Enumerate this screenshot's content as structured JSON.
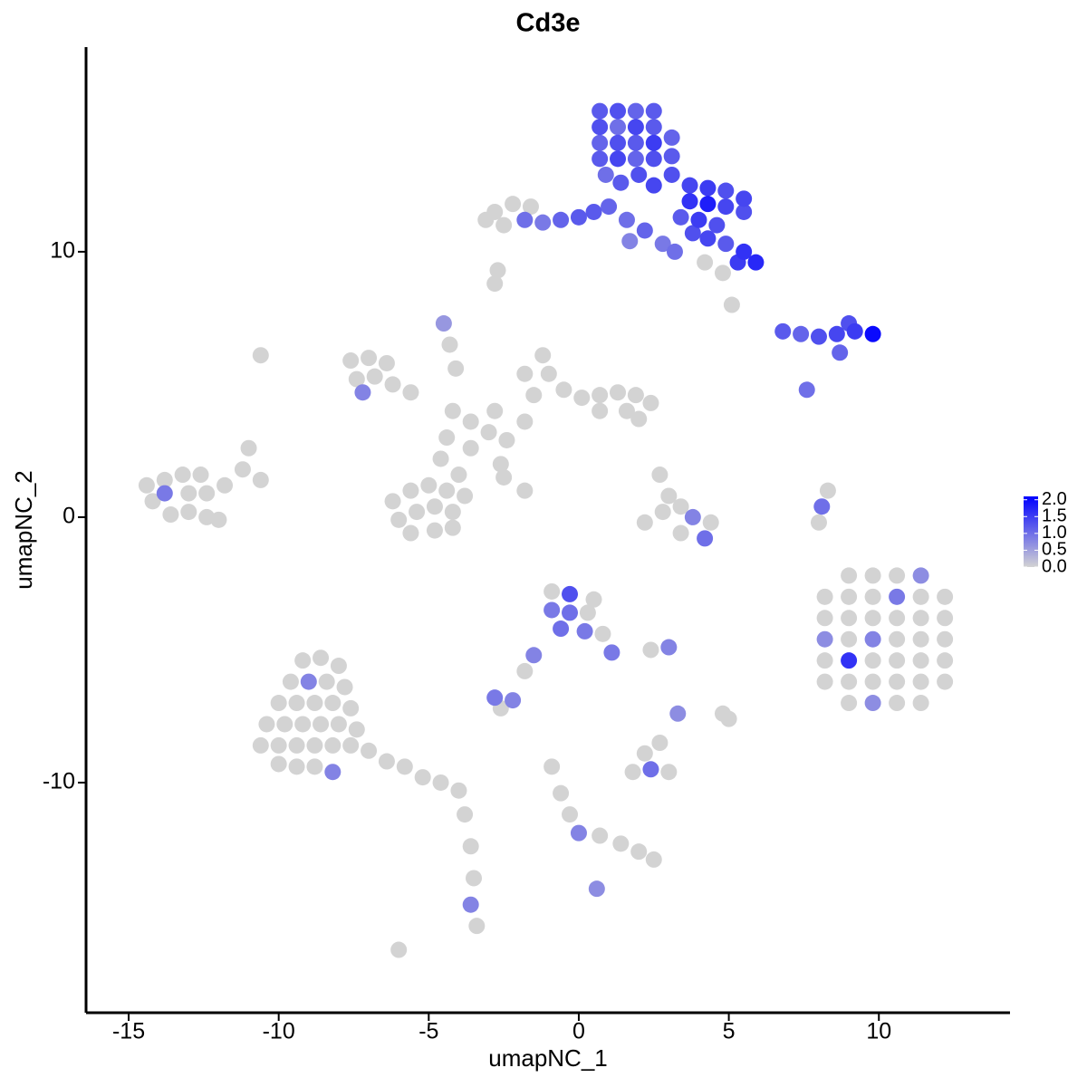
{
  "chart_data": {
    "type": "scatter",
    "title": "Cd3e",
    "x_label": "umapNC_1",
    "y_label": "umapNC_2",
    "xlim": [
      -16.42,
      14.37
    ],
    "ylim": [
      -18.67,
      17.71
    ],
    "xticks": [
      -15,
      -10,
      -5,
      0,
      5,
      10
    ],
    "yticks": [
      -10,
      0,
      10
    ],
    "color_low": "#d3d3d3",
    "color_high": "#0000ff",
    "clim": [
      0,
      2.1
    ],
    "cticks": [
      {
        "value": 0,
        "label": "0.0"
      },
      {
        "value": 0.5,
        "label": "0.5"
      },
      {
        "value": 1,
        "label": "1.0"
      },
      {
        "value": 1.5,
        "label": "1.5"
      },
      {
        "value": 2,
        "label": "2.0"
      }
    ],
    "x": [
      0.7,
      1.3,
      1.9,
      2.5,
      0.7,
      1.3,
      1.9,
      2.5,
      0.7,
      1.3,
      1.9,
      2.5,
      0.7,
      1.3,
      1.9,
      2.5,
      0.9,
      1.4,
      2.0,
      2.5,
      3.1,
      3.1,
      3.1,
      3.7,
      4.3,
      4.9,
      5.5,
      3.7,
      4.3,
      4.9,
      5.5,
      3.4,
      4.0,
      4.6,
      4.3,
      4.9,
      5.5,
      5.9,
      5.3,
      3.8,
      -1.8,
      -1.2,
      -0.6,
      0.0,
      0.5,
      1.0,
      1.6,
      2.2,
      2.8,
      3.2,
      1.7,
      -2.8,
      -2.2,
      -1.6,
      -2.5,
      -3.1,
      4.2,
      4.8,
      5.1,
      6.8,
      7.4,
      8.0,
      8.6,
      9.2,
      9.8,
      9.0,
      8.7,
      7.6,
      -7.6,
      -7.0,
      -6.4,
      -7.4,
      -6.8,
      -6.2,
      -5.6,
      -7.2,
      -4.2,
      -3.6,
      -3.0,
      -2.4,
      -3.6,
      -4.4,
      -2.8,
      -1.8,
      -4.6,
      -4.0,
      -2.6,
      -1.2,
      -1.8,
      -1.0,
      -0.5,
      -1.5,
      0.1,
      0.7,
      1.3,
      1.9,
      2.4,
      1.6,
      0.7,
      2.0,
      -6.2,
      -5.6,
      -5.0,
      -4.4,
      -3.8,
      -6.0,
      -5.4,
      -4.8,
      -4.2,
      -5.6,
      -4.8,
      -4.2,
      -4.5,
      -4.3,
      -4.1,
      -2.5,
      -1.8,
      -10.6,
      -14.4,
      -13.8,
      -13.2,
      -12.6,
      -14.2,
      -13.8,
      -13.0,
      -12.4,
      -13.6,
      -13.0,
      -12.4,
      -11.8,
      -11.2,
      -11.0,
      -10.6,
      -12.0,
      2.7,
      3.0,
      3.4,
      2.8,
      3.8,
      4.4,
      3.4,
      4.2,
      2.2,
      8.3,
      8.1,
      8.0,
      8.2,
      8.2,
      8.2,
      8.2,
      8.2,
      9.0,
      9.0,
      9.0,
      9.0,
      9.0,
      9.0,
      9.0,
      9.8,
      9.8,
      9.8,
      9.8,
      9.8,
      9.8,
      9.8,
      10.6,
      10.6,
      10.6,
      10.6,
      10.6,
      10.6,
      10.6,
      11.4,
      11.4,
      11.4,
      11.4,
      11.4,
      11.4,
      11.4,
      12.2,
      12.2,
      12.2,
      12.2,
      12.2,
      -0.9,
      -0.3,
      -0.9,
      -0.3,
      0.3,
      -0.6,
      0.2,
      0.8,
      1.1,
      -1.5,
      -1.8,
      0.5,
      -2.8,
      -2.2,
      -2.6,
      2.4,
      3.0,
      -9.2,
      -8.6,
      -8.0,
      -9.6,
      -9.0,
      -8.4,
      -7.8,
      -10.0,
      -9.4,
      -8.8,
      -8.2,
      -7.6,
      -10.4,
      -9.8,
      -9.2,
      -8.6,
      -8.0,
      -7.4,
      -10.6,
      -10.0,
      -9.4,
      -8.8,
      -8.2,
      -7.6,
      -7.0,
      -10.0,
      -9.4,
      -8.8,
      -8.2,
      -6.4,
      -5.8,
      -5.2,
      -4.6,
      -4.0,
      -3.8,
      -3.6,
      -3.5,
      -3.6,
      -3.4,
      -6.0,
      1.8,
      2.4,
      3.0,
      2.2,
      2.7,
      3.3,
      5.0,
      4.8,
      -0.9,
      -0.6,
      -0.3,
      0.0,
      0.7,
      1.4,
      2.0,
      2.5,
      0.6,
      -2.8,
      -2.7
    ],
    "values": [
      15.3,
      15.3,
      15.3,
      15.3,
      14.7,
      14.7,
      14.7,
      14.7,
      14.1,
      14.1,
      14.1,
      14.1,
      13.5,
      13.5,
      13.5,
      13.5,
      12.9,
      12.6,
      12.9,
      12.5,
      14.3,
      13.6,
      12.9,
      12.5,
      12.4,
      12.3,
      12.0,
      11.9,
      11.8,
      11.7,
      11.5,
      11.3,
      11.2,
      11.0,
      10.5,
      10.3,
      10.0,
      9.6,
      9.6,
      10.7,
      11.2,
      11.1,
      11.2,
      11.3,
      11.5,
      11.7,
      11.2,
      10.8,
      10.3,
      10.0,
      10.4,
      11.5,
      11.8,
      11.7,
      11.0,
      11.2,
      9.6,
      9.2,
      8.0,
      7.0,
      6.9,
      6.8,
      6.9,
      7.0,
      6.9,
      7.3,
      6.2,
      4.8,
      5.9,
      6.0,
      5.8,
      5.2,
      5.3,
      5.0,
      4.7,
      4.7,
      4.0,
      3.6,
      3.2,
      2.9,
      2.6,
      3.0,
      4.0,
      3.6,
      2.2,
      1.6,
      2.0,
      6.1,
      5.4,
      5.4,
      4.8,
      4.6,
      4.5,
      4.6,
      4.7,
      4.6,
      4.3,
      4.0,
      4.0,
      3.7,
      0.6,
      1.0,
      1.2,
      1.0,
      0.8,
      -0.1,
      0.2,
      0.4,
      0.2,
      -0.6,
      -0.5,
      -0.4,
      7.3,
      6.5,
      5.6,
      1.5,
      1.0,
      6.1,
      1.2,
      1.4,
      1.6,
      1.6,
      0.6,
      0.9,
      0.9,
      0.9,
      0.1,
      0.2,
      0.0,
      1.2,
      1.8,
      2.6,
      1.4,
      -0.1,
      1.6,
      0.8,
      0.4,
      0.2,
      0.0,
      -0.2,
      -0.6,
      -0.8,
      -0.2,
      1.0,
      0.4,
      -0.2,
      -3.0,
      -3.8,
      -4.6,
      -5.4,
      -6.2,
      -2.2,
      -3.0,
      -3.8,
      -4.6,
      -5.4,
      -6.2,
      -7.0,
      -2.2,
      -3.0,
      -3.8,
      -4.6,
      -5.4,
      -6.2,
      -7.0,
      -2.2,
      -3.0,
      -3.8,
      -4.6,
      -5.4,
      -6.2,
      -7.0,
      -2.2,
      -3.0,
      -3.8,
      -4.6,
      -5.4,
      -6.2,
      -7.0,
      -3.0,
      -3.8,
      -4.6,
      -5.4,
      -6.2,
      -2.8,
      -2.9,
      -3.5,
      -3.6,
      -3.6,
      -4.2,
      -4.3,
      -4.4,
      -5.1,
      -5.2,
      -5.8,
      -3.1,
      -6.8,
      -6.9,
      -7.2,
      -5.0,
      -4.9,
      -5.4,
      -5.3,
      -5.6,
      -6.2,
      -6.2,
      -6.2,
      -6.4,
      -7.0,
      -7.0,
      -7.0,
      -7.0,
      -7.2,
      -7.8,
      -7.8,
      -7.8,
      -7.8,
      -7.8,
      -8.0,
      -8.6,
      -8.6,
      -8.6,
      -8.6,
      -8.6,
      -8.6,
      -8.8,
      -9.3,
      -9.4,
      -9.4,
      -9.6,
      -9.2,
      -9.4,
      -9.8,
      -10.0,
      -10.3,
      -11.2,
      -12.4,
      -13.6,
      -14.6,
      -15.4,
      -16.3,
      -9.6,
      -9.5,
      -9.6,
      -8.9,
      -8.5,
      -7.4,
      -7.6,
      -7.4,
      -9.4,
      -10.4,
      -11.2,
      -11.9,
      -12.0,
      -12.3,
      -12.6,
      -12.9,
      -14.0,
      8.8,
      9.3
    ],
    "expression": [
      1.2,
      1.3,
      1.1,
      1.2,
      1.3,
      1.0,
      1.4,
      1.2,
      1.1,
      1.3,
      1.2,
      1.5,
      1.2,
      1.4,
      1.1,
      1.3,
      1.0,
      1.2,
      1.3,
      1.4,
      1.1,
      1.2,
      1.3,
      1.4,
      1.5,
      1.3,
      1.4,
      1.6,
      1.8,
      1.4,
      1.3,
      1.2,
      1.5,
      1.3,
      1.4,
      1.2,
      1.6,
      1.7,
      1.5,
      1.3,
      1.0,
      0.9,
      1.1,
      1.2,
      1.2,
      1.1,
      1.0,
      1.1,
      0.9,
      1.0,
      0.8,
      0,
      0,
      0,
      0,
      0,
      0,
      0,
      0,
      1.2,
      1.1,
      1.3,
      1.4,
      1.5,
      2.0,
      1.3,
      1.1,
      1.0,
      0,
      0,
      0,
      0,
      0,
      0,
      0,
      0.8,
      0,
      0,
      0,
      0,
      0,
      0,
      0,
      0,
      0,
      0,
      0,
      0,
      0,
      0,
      0,
      0,
      0,
      0,
      0,
      0,
      0,
      0,
      0,
      0,
      0,
      0,
      0,
      0,
      0,
      0,
      0,
      0,
      0,
      0,
      0,
      0,
      0.6,
      0,
      0,
      0,
      0,
      0,
      0,
      0,
      0,
      0,
      0,
      0.9,
      0,
      0,
      0,
      0,
      0,
      0,
      0,
      0,
      0,
      0,
      0,
      0,
      0,
      0,
      0.8,
      0,
      0,
      1.0,
      0,
      0,
      1.0,
      0,
      0,
      0,
      0.7,
      0,
      0,
      0,
      0,
      0,
      0,
      1.6,
      0,
      0,
      0,
      0,
      0,
      0.8,
      0,
      0,
      0.7,
      0,
      0.9,
      0,
      0,
      0,
      0,
      0,
      0.7,
      0,
      0,
      0,
      0,
      0,
      0,
      0,
      0,
      0,
      0,
      0,
      0,
      1.3,
      0.9,
      1.0,
      0,
      1.0,
      0.9,
      0,
      0.9,
      0.8,
      0,
      0,
      0.9,
      0.8,
      0,
      0,
      0.8,
      0,
      0,
      0,
      0,
      0.8,
      0,
      0,
      0,
      0,
      0,
      0,
      0,
      0,
      0,
      0,
      0,
      0,
      0,
      0,
      0,
      0,
      0,
      0,
      0,
      0,
      0,
      0,
      0,
      0.8,
      0,
      0,
      0,
      0,
      0,
      0,
      0,
      0,
      0.8,
      0,
      0,
      0,
      1.0,
      0,
      0,
      0,
      0.7,
      0,
      0,
      0,
      0,
      0,
      0.8,
      0,
      0,
      0,
      0,
      0.7,
      0,
      0
    ]
  }
}
